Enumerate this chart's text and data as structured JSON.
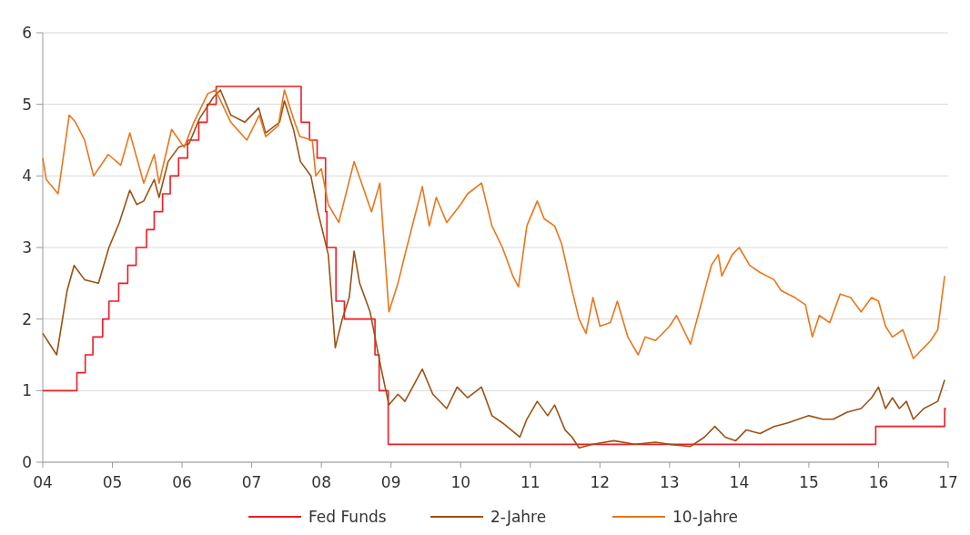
{
  "chart_data": {
    "type": "line",
    "xlim": [
      2004,
      2017
    ],
    "ylim": [
      0,
      6
    ],
    "xticks": [
      {
        "value": 2004,
        "label": "04"
      },
      {
        "value": 2005,
        "label": "05"
      },
      {
        "value": 2006,
        "label": "06"
      },
      {
        "value": 2007,
        "label": "07"
      },
      {
        "value": 2008,
        "label": "08"
      },
      {
        "value": 2009,
        "label": "09"
      },
      {
        "value": 2010,
        "label": "10"
      },
      {
        "value": 2011,
        "label": "11"
      },
      {
        "value": 2012,
        "label": "12"
      },
      {
        "value": 2013,
        "label": "13"
      },
      {
        "value": 2014,
        "label": "14"
      },
      {
        "value": 2015,
        "label": "15"
      },
      {
        "value": 2016,
        "label": "16"
      },
      {
        "value": 2017,
        "label": "17"
      }
    ],
    "yticks": [
      0,
      1,
      2,
      3,
      4,
      5,
      6
    ],
    "grid": "y",
    "legend": "bottom",
    "series": [
      {
        "name": "Fed Funds",
        "type": "step",
        "color": "#ee1c25",
        "x": [
          2004,
          2004.49,
          2004.61,
          2004.72,
          2004.86,
          2004.95,
          2005.09,
          2005.22,
          2005.34,
          2005.49,
          2005.6,
          2005.72,
          2005.83,
          2005.95,
          2006.08,
          2006.24,
          2006.36,
          2006.49,
          2007.71,
          2007.83,
          2007.94,
          2008.06,
          2008.08,
          2008.21,
          2008.33,
          2008.77,
          2008.83,
          2008.96,
          2015.96,
          2016.95,
          2016.97
        ],
        "values": [
          1,
          1.25,
          1.5,
          1.75,
          2,
          2.25,
          2.5,
          2.75,
          3,
          3.25,
          3.5,
          3.75,
          4,
          4.25,
          4.5,
          4.75,
          5,
          5.25,
          4.75,
          4.5,
          4.25,
          3.5,
          3,
          2.25,
          2,
          1.5,
          1,
          0.25,
          0.5,
          0.75,
          0.75
        ]
      },
      {
        "name": "2-Jahre",
        "color": "#9c5112",
        "x": [
          2004,
          2004.1,
          2004.2,
          2004.35,
          2004.45,
          2004.6,
          2004.8,
          2004.95,
          2005.1,
          2005.25,
          2005.35,
          2005.45,
          2005.6,
          2005.67,
          2005.8,
          2005.95,
          2006.1,
          2006.25,
          2006.45,
          2006.55,
          2006.7,
          2006.9,
          2007.1,
          2007.2,
          2007.4,
          2007.47,
          2007.6,
          2007.7,
          2007.85,
          2007.95,
          2008.1,
          2008.2,
          2008.3,
          2008.4,
          2008.47,
          2008.55,
          2008.7,
          2008.85,
          2008.97,
          2009.1,
          2009.2,
          2009.45,
          2009.6,
          2009.8,
          2009.95,
          2010.1,
          2010.3,
          2010.45,
          2010.6,
          2010.85,
          2010.95,
          2011.1,
          2011.25,
          2011.35,
          2011.5,
          2011.6,
          2011.7,
          2011.9,
          2012.2,
          2012.5,
          2012.8,
          2013,
          2013.3,
          2013.5,
          2013.65,
          2013.8,
          2013.95,
          2014.1,
          2014.3,
          2014.5,
          2014.7,
          2014.85,
          2015,
          2015.2,
          2015.35,
          2015.55,
          2015.75,
          2015.9,
          2016,
          2016.1,
          2016.2,
          2016.3,
          2016.4,
          2016.5,
          2016.65,
          2016.85,
          2016.95
        ],
        "values": [
          1.8,
          1.65,
          1.5,
          2.4,
          2.75,
          2.55,
          2.5,
          3,
          3.35,
          3.8,
          3.6,
          3.65,
          3.95,
          3.7,
          4.2,
          4.4,
          4.45,
          4.8,
          5.1,
          5.2,
          4.85,
          4.75,
          4.95,
          4.6,
          4.75,
          5.05,
          4.65,
          4.2,
          4,
          3.5,
          2.9,
          1.6,
          2,
          2.3,
          2.95,
          2.5,
          2.1,
          1.35,
          0.8,
          0.95,
          0.85,
          1.3,
          0.95,
          0.75,
          1.05,
          0.9,
          1.05,
          0.65,
          0.55,
          0.35,
          0.6,
          0.85,
          0.65,
          0.8,
          0.45,
          0.35,
          0.2,
          0.25,
          0.3,
          0.25,
          0.28,
          0.25,
          0.22,
          0.35,
          0.5,
          0.35,
          0.3,
          0.45,
          0.4,
          0.5,
          0.55,
          0.6,
          0.65,
          0.6,
          0.6,
          0.7,
          0.75,
          0.9,
          1.05,
          0.75,
          0.9,
          0.75,
          0.85,
          0.6,
          0.75,
          0.85,
          1.15
        ]
      },
      {
        "name": "10-Jahre",
        "color": "#e8761c",
        "x": [
          2004,
          2004.05,
          2004.22,
          2004.38,
          2004.47,
          2004.6,
          2004.73,
          2004.94,
          2005.12,
          2005.25,
          2005.45,
          2005.6,
          2005.67,
          2005.85,
          2006.03,
          2006.17,
          2006.37,
          2006.48,
          2006.7,
          2006.93,
          2007.11,
          2007.2,
          2007.38,
          2007.47,
          2007.6,
          2007.69,
          2007.87,
          2007.92,
          2008,
          2008.1,
          2008.25,
          2008.47,
          2008.72,
          2008.84,
          2008.97,
          2009.1,
          2009.2,
          2009.45,
          2009.55,
          2009.65,
          2009.8,
          2010,
          2010.1,
          2010.3,
          2010.45,
          2010.6,
          2010.75,
          2010.83,
          2010.95,
          2011.1,
          2011.2,
          2011.35,
          2011.45,
          2011.6,
          2011.7,
          2011.8,
          2011.9,
          2012,
          2012.15,
          2012.25,
          2012.4,
          2012.55,
          2012.65,
          2012.8,
          2013,
          2013.1,
          2013.3,
          2013.45,
          2013.6,
          2013.7,
          2013.75,
          2013.9,
          2014,
          2014.15,
          2014.3,
          2014.5,
          2014.6,
          2014.8,
          2014.95,
          2015.05,
          2015.15,
          2015.3,
          2015.45,
          2015.6,
          2015.75,
          2015.9,
          2016,
          2016.1,
          2016.2,
          2016.35,
          2016.5,
          2016.6,
          2016.75,
          2016.85,
          2016.95
        ],
        "values": [
          4.25,
          3.95,
          3.75,
          4.85,
          4.75,
          4.5,
          4,
          4.3,
          4.15,
          4.6,
          3.9,
          4.3,
          3.9,
          4.65,
          4.4,
          4.75,
          5.15,
          5.2,
          4.75,
          4.5,
          4.85,
          4.55,
          4.7,
          5.2,
          4.8,
          4.55,
          4.5,
          4,
          4.1,
          3.6,
          3.35,
          4.2,
          3.5,
          3.9,
          2.1,
          2.5,
          2.9,
          3.85,
          3.3,
          3.7,
          3.35,
          3.6,
          3.75,
          3.9,
          3.3,
          3,
          2.6,
          2.45,
          3.3,
          3.65,
          3.4,
          3.3,
          3.05,
          2.4,
          2,
          1.8,
          2.3,
          1.9,
          1.95,
          2.25,
          1.75,
          1.5,
          1.75,
          1.7,
          1.9,
          2.05,
          1.65,
          2.2,
          2.75,
          2.9,
          2.6,
          2.9,
          3,
          2.75,
          2.65,
          2.55,
          2.4,
          2.3,
          2.2,
          1.75,
          2.05,
          1.95,
          2.35,
          2.3,
          2.1,
          2.3,
          2.25,
          1.9,
          1.75,
          1.85,
          1.45,
          1.55,
          1.7,
          1.85,
          2.6
        ]
      }
    ]
  }
}
